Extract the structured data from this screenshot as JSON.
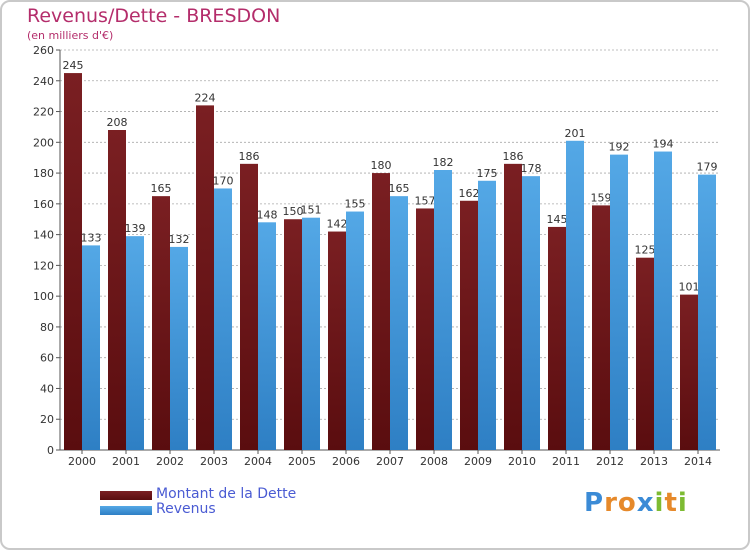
{
  "title": "Revenus/Dette - BRESDON",
  "subtitle": "(en milliers d'€)",
  "legend": {
    "debt_label": "Montant de la Dette",
    "revenue_label": "Revenus"
  },
  "logo": {
    "text": "Proxiti",
    "letters": [
      "P",
      "r",
      "o",
      "x",
      "i",
      "t",
      "i"
    ],
    "letter_colors": [
      "#3b8bd6",
      "#e6892a",
      "#e6892a",
      "#3b8bd6",
      "#7dbb32",
      "#e6892a",
      "#7dbb32"
    ]
  },
  "colors": {
    "debt": "#7a1f22",
    "debt_dark": "#5a0d0f",
    "revenue": "#54a8e6",
    "revenue_dark": "#2e7fc4",
    "grid": "#aaaaaa",
    "title": "#b42d6b"
  },
  "chart_data": {
    "type": "bar",
    "title": "Revenus/Dette - BRESDON",
    "ylabel": "(en milliers d'€)",
    "xlabel": "",
    "ylim": [
      0,
      260
    ],
    "yticks": [
      0,
      20,
      40,
      60,
      80,
      100,
      120,
      140,
      160,
      180,
      200,
      220,
      240,
      260
    ],
    "grid": true,
    "categories": [
      "2000",
      "2001",
      "2002",
      "2003",
      "2004",
      "2005",
      "2006",
      "2007",
      "2008",
      "2009",
      "2010",
      "2011",
      "2012",
      "2013",
      "2014"
    ],
    "series": [
      {
        "name": "Montant de la Dette",
        "values": [
          245,
          208,
          165,
          224,
          186,
          150,
          142,
          180,
          157,
          162,
          186,
          145,
          159,
          125,
          101
        ]
      },
      {
        "name": "Revenus",
        "values": [
          133,
          139,
          132,
          170,
          148,
          151,
          155,
          165,
          182,
          175,
          178,
          201,
          192,
          194,
          179
        ]
      }
    ]
  }
}
